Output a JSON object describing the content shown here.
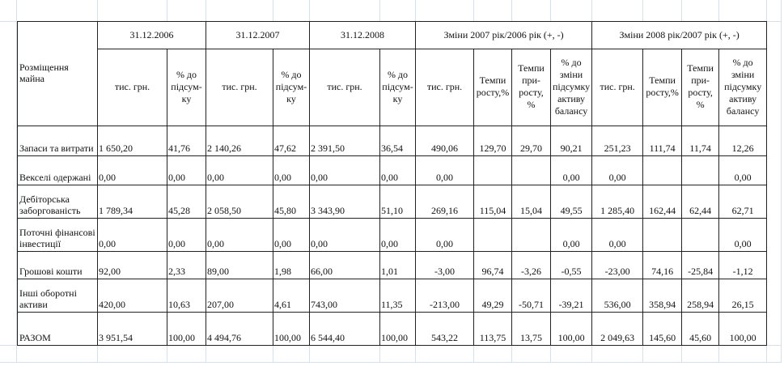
{
  "table": {
    "row_header": "Розміщення майна",
    "groups": [
      "31.12.2006",
      "31.12.2007",
      "31.12.2008",
      "Зміни 2007 рік/2006 рік (+, -)",
      "Зміни 2008 рік/2007 рік (+, -)"
    ],
    "subheaders": [
      "тис. грн.",
      "% до підсум-ку",
      "тис. грн.",
      "% до підсум-ку",
      "тис. грн.",
      "% до підсум-ку",
      "тис. грн.",
      "Темпи росту,%",
      "Темпи при-росту, %",
      "% до зміни підсумку активу балансу",
      "тис. грн.",
      "Темпи росту,%",
      "Темпи при-росту, %",
      "% до зміни підсумку активу балансу"
    ],
    "rows": [
      {
        "name": "Запаси та витрати",
        "values": [
          "1 650,20",
          "41,76",
          "2 140,26",
          "47,62",
          "2 391,50",
          "36,54",
          "490,06",
          "129,70",
          "29,70",
          "90,21",
          "251,23",
          "111,74",
          "11,74",
          "12,26"
        ]
      },
      {
        "name": "Векселі одержані",
        "values": [
          "0,00",
          "0,00",
          "0,00",
          "0,00",
          "0,00",
          "0,00",
          "0,00",
          "",
          "",
          "0,00",
          "0,00",
          "",
          "",
          "0,00"
        ]
      },
      {
        "name": "Дебіторська заборгованість",
        "values": [
          "1 789,34",
          "45,28",
          "2 058,50",
          "45,80",
          "3 343,90",
          "51,10",
          "269,16",
          "115,04",
          "15,04",
          "49,55",
          "1 285,40",
          "162,44",
          "62,44",
          "62,71"
        ]
      },
      {
        "name": "Поточні фінансові інвестиції",
        "values": [
          "0,00",
          "0,00",
          "0,00",
          "0,00",
          "0,00",
          "0,00",
          "0,00",
          "",
          "",
          "0,00",
          "0,00",
          "",
          "",
          "0,00"
        ]
      },
      {
        "name": "Грошові кошти",
        "values": [
          "92,00",
          "2,33",
          "89,00",
          "1,98",
          "66,00",
          "1,01",
          "-3,00",
          "96,74",
          "-3,26",
          "-0,55",
          "-23,00",
          "74,16",
          "-25,84",
          "-1,12"
        ]
      },
      {
        "name": "Інші оборотні активи",
        "values": [
          "420,00",
          "10,63",
          "207,00",
          "4,61",
          "743,00",
          "11,35",
          "-213,00",
          "49,29",
          "-50,71",
          "-39,21",
          "536,00",
          "358,94",
          "258,94",
          "26,15"
        ]
      },
      {
        "name": "РАЗОМ",
        "values": [
          "3 951,54",
          "100,00",
          "4 494,76",
          "100,00",
          "6 544,40",
          "100,00",
          "543,22",
          "113,75",
          "13,75",
          "100,00",
          "2 049,63",
          "145,60",
          "45,60",
          "100,00"
        ]
      }
    ]
  }
}
